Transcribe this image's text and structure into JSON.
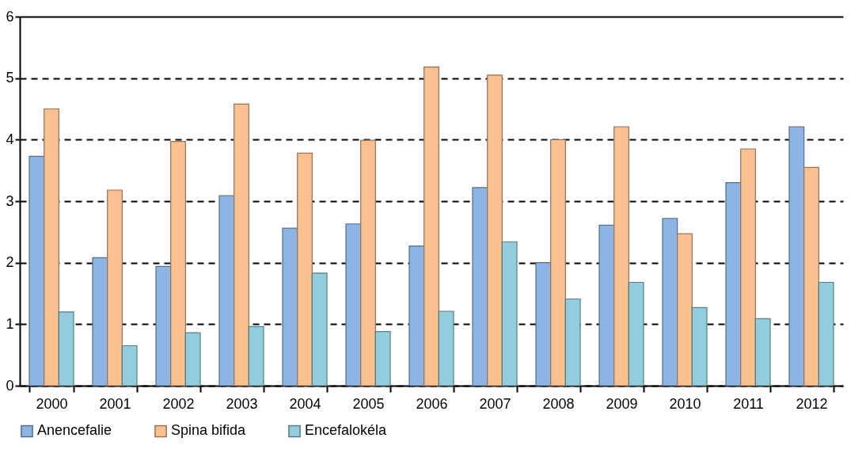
{
  "chart_data": {
    "type": "bar",
    "categories": [
      "2000",
      "2001",
      "2002",
      "2003",
      "2004",
      "2005",
      "2006",
      "2007",
      "2008",
      "2009",
      "2010",
      "2011",
      "2012"
    ],
    "series": [
      {
        "name": "Anencefalie",
        "color": "#8eb4e3",
        "values": [
          3.73,
          2.08,
          1.94,
          3.09,
          2.56,
          2.63,
          2.27,
          3.22,
          2.0,
          2.61,
          2.72,
          3.3,
          4.21
        ]
      },
      {
        "name": "Spina bifida",
        "color": "#fac090",
        "values": [
          4.5,
          3.18,
          3.97,
          4.58,
          3.78,
          3.99,
          5.18,
          5.05,
          4.0,
          4.21,
          2.47,
          3.85,
          3.55
        ]
      },
      {
        "name": "Encefalokéla",
        "color": "#93cddd",
        "values": [
          1.2,
          0.65,
          0.86,
          0.96,
          1.83,
          0.88,
          1.21,
          2.34,
          1.41,
          1.68,
          1.27,
          1.09,
          1.68
        ]
      }
    ],
    "ylim": [
      0,
      6
    ],
    "yticks": [
      0,
      1,
      2,
      3,
      4,
      5,
      6
    ],
    "grid": "y",
    "legend": "bottom"
  }
}
